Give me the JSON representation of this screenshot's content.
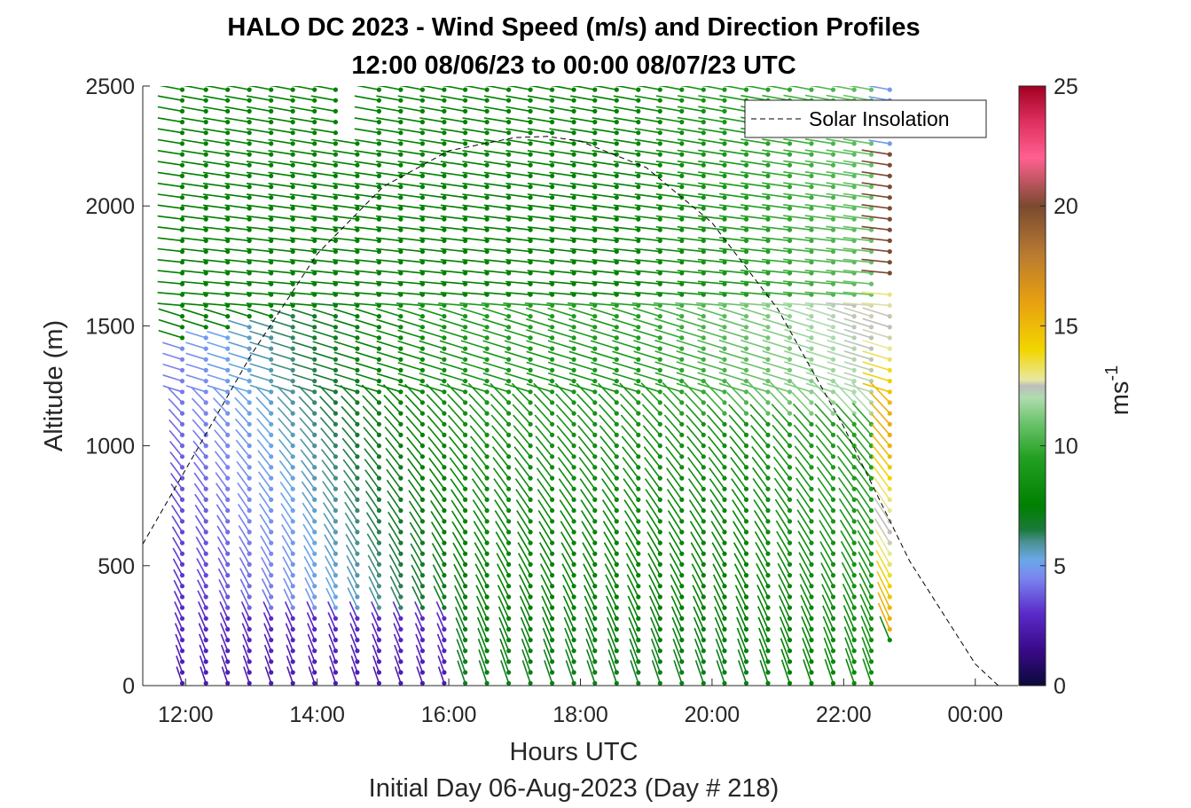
{
  "chart_data": {
    "type": "scatter",
    "subtype": "wind-barb profile",
    "title_line1": "HALO DC 2023 - Wind Speed (m/s) and Direction Profiles",
    "title_line2": "12:00 08/06/23 to 00:00 08/07/23  UTC",
    "xlabel": "Hours UTC",
    "sublabel": "Initial Day 06-Aug-2023 (Day # 218)",
    "ylabel": "Altitude (m)",
    "x_tick_labels": [
      "12:00",
      "14:00",
      "16:00",
      "18:00",
      "20:00",
      "22:00",
      "00:00"
    ],
    "x_tick_hours": [
      12,
      14,
      16,
      18,
      20,
      22,
      24
    ],
    "xlim_hours": [
      11.35,
      24.65
    ],
    "y_ticks": [
      0,
      500,
      1000,
      1500,
      2000,
      2500
    ],
    "y_tick_labels": [
      "0",
      "500",
      "1000",
      "1500",
      "2000",
      "2500"
    ],
    "ylim": [
      0,
      2500
    ],
    "colorbar": {
      "label_base": "ms",
      "label_exp": "-1",
      "ticks": [
        0,
        5,
        10,
        15,
        20,
        25
      ],
      "tick_labels": [
        "0",
        "5",
        "10",
        "15",
        "20",
        "25"
      ],
      "range": [
        0,
        25
      ]
    },
    "legend": {
      "entry": "Solar Insolation",
      "placement": "top-right",
      "style": "dashed black"
    },
    "profile_hours": [
      11.95,
      12.31,
      12.64,
      12.97,
      13.3,
      13.63,
      13.96,
      14.28,
      14.61,
      14.94,
      15.27,
      15.6,
      15.93,
      16.25,
      16.58,
      16.91,
      17.24,
      17.57,
      17.9,
      18.22,
      18.55,
      18.88,
      19.21,
      19.54,
      19.87,
      20.19,
      20.52,
      20.85,
      21.18,
      21.51,
      21.84,
      22.16,
      22.42,
      22.7
    ],
    "observed_extent": {
      "main_profiles_hours": [
        11.95,
        22.42
      ],
      "sparse_high_profile_hour": 22.7,
      "data_gap": {
        "hours": [
          14.45,
          14.8
        ],
        "altitude_m": [
          2300,
          2500
        ]
      }
    },
    "wind_regimes": [
      {
        "layer": "0-300 m, 12:00-15:30",
        "speed_ms": 2,
        "color_band": "purple"
      },
      {
        "layer": "0-1000 m, 12:00-14:30",
        "speed_ms": 4,
        "color_band": "blue"
      },
      {
        "layer": "0-1500 m, 15:00-22:00",
        "speed_ms": 7,
        "color_band": "green"
      },
      {
        "layer": "1500-2500 m, all hours",
        "speed_ms": 8,
        "color_band": "green"
      },
      {
        "layer": "0-2500 m, 19:00-22:30",
        "speed_ms": 10,
        "color_band": "light green"
      },
      {
        "layer": "200-1600 m, 22:42",
        "speed_ms": 15,
        "color_band": "yellow-orange"
      },
      {
        "layer": "1700-2200 m, 22:42",
        "speed_ms": 20,
        "color_band": "brown"
      }
    ],
    "solar_insolation_curve": {
      "description": "dashed curve peaking near 17:30 UTC",
      "hours": [
        11.35,
        12.0,
        13.0,
        14.0,
        15.0,
        16.0,
        17.0,
        17.5,
        18.0,
        19.0,
        20.0,
        21.0,
        22.0,
        23.0,
        24.0,
        24.35,
        24.6
      ],
      "altitude_m": [
        590,
        900,
        1380,
        1800,
        2080,
        2230,
        2285,
        2290,
        2270,
        2160,
        1930,
        1570,
        1080,
        520,
        90,
        0,
        0
      ]
    }
  }
}
